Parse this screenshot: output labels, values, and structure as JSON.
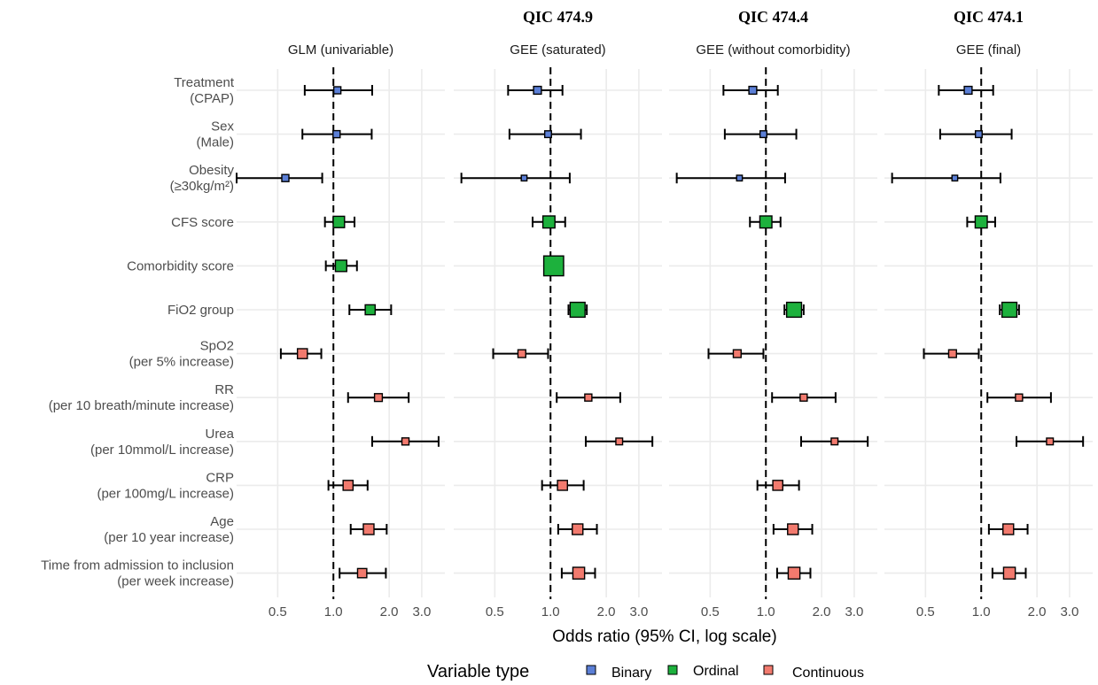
{
  "chart_data": {
    "type": "forest",
    "xlabel": "Odds ratio (95% CI, log scale)",
    "x_scale": "log",
    "xlim": [
      0.3,
      4.0
    ],
    "x_ticks": [
      "0.5",
      "1.0",
      "2.0",
      "3.0"
    ],
    "reference_line": 1.0,
    "grid": true,
    "colors": {
      "Binary": "#5b7fd6",
      "Ordinal": "#1db13d",
      "Continuous": "#f27a6e"
    },
    "legend": {
      "title": "Variable type",
      "position": "bottom",
      "items": [
        "Binary",
        "Ordinal",
        "Continuous"
      ]
    },
    "variables": [
      {
        "label": [
          "Treatment",
          "(CPAP)"
        ],
        "type": "Binary"
      },
      {
        "label": [
          "Sex",
          "(Male)"
        ],
        "type": "Binary"
      },
      {
        "label": [
          "Obesity",
          "(≥30kg/m²)"
        ],
        "type": "Binary"
      },
      {
        "label": [
          "CFS score"
        ],
        "type": "Ordinal"
      },
      {
        "label": [
          "Comorbidity score"
        ],
        "type": "Ordinal"
      },
      {
        "label": [
          "FiO2 group"
        ],
        "type": "Ordinal"
      },
      {
        "label": [
          "SpO2",
          "(per 5% increase)"
        ],
        "type": "Continuous"
      },
      {
        "label": [
          "RR",
          "(per 10 breath/minute increase)"
        ],
        "type": "Continuous"
      },
      {
        "label": [
          "Urea",
          "(per 10mmol/L increase)"
        ],
        "type": "Continuous"
      },
      {
        "label": [
          "CRP",
          "(per 100mg/L increase)"
        ],
        "type": "Continuous"
      },
      {
        "label": [
          "Age",
          "(per 10 year increase)"
        ],
        "type": "Continuous"
      },
      {
        "label": [
          "Time from admission to inclusion",
          "(per week increase)"
        ],
        "type": "Continuous"
      }
    ],
    "panels": [
      {
        "strip": "GLM (univariable)",
        "qic": "",
        "estimates": [
          {
            "or": 1.05,
            "lo": 0.7,
            "hi": 1.62,
            "size": 1.0
          },
          {
            "or": 1.04,
            "lo": 0.68,
            "hi": 1.61,
            "size": 1.0
          },
          {
            "or": 0.55,
            "lo": 0.3,
            "hi": 0.87,
            "size": 1.0
          },
          {
            "or": 1.07,
            "lo": 0.9,
            "hi": 1.3,
            "size": 1.6
          },
          {
            "or": 1.1,
            "lo": 0.91,
            "hi": 1.34,
            "size": 1.6
          },
          {
            "or": 1.58,
            "lo": 1.22,
            "hi": 2.05,
            "size": 1.4
          },
          {
            "or": 0.68,
            "lo": 0.52,
            "hi": 0.86,
            "size": 1.4
          },
          {
            "or": 1.75,
            "lo": 1.2,
            "hi": 2.55,
            "size": 1.1
          },
          {
            "or": 2.45,
            "lo": 1.62,
            "hi": 3.7,
            "size": 1.0
          },
          {
            "or": 1.2,
            "lo": 0.94,
            "hi": 1.53,
            "size": 1.4
          },
          {
            "or": 1.55,
            "lo": 1.24,
            "hi": 1.94,
            "size": 1.5
          },
          {
            "or": 1.43,
            "lo": 1.08,
            "hi": 1.92,
            "size": 1.3
          }
        ]
      },
      {
        "strip": "GEE (saturated)",
        "qic": "QIC 474.9",
        "estimates": [
          {
            "or": 0.85,
            "lo": 0.59,
            "hi": 1.16,
            "size": 1.1
          },
          {
            "or": 0.97,
            "lo": 0.6,
            "hi": 1.46,
            "size": 0.95
          },
          {
            "or": 0.72,
            "lo": 0.33,
            "hi": 1.27,
            "size": 0.8
          },
          {
            "or": 0.98,
            "lo": 0.8,
            "hi": 1.2,
            "size": 1.7
          },
          {
            "or": 1.04,
            "lo": 0.93,
            "hi": 1.16,
            "size": 2.8
          },
          {
            "or": 1.4,
            "lo": 1.25,
            "hi": 1.57,
            "size": 2.1
          },
          {
            "or": 0.7,
            "lo": 0.49,
            "hi": 0.97,
            "size": 1.1
          },
          {
            "or": 1.6,
            "lo": 1.08,
            "hi": 2.38,
            "size": 1.0
          },
          {
            "or": 2.35,
            "lo": 1.55,
            "hi": 3.55,
            "size": 0.95
          },
          {
            "or": 1.16,
            "lo": 0.9,
            "hi": 1.51,
            "size": 1.4
          },
          {
            "or": 1.4,
            "lo": 1.1,
            "hi": 1.78,
            "size": 1.5
          },
          {
            "or": 1.42,
            "lo": 1.15,
            "hi": 1.74,
            "size": 1.65
          }
        ]
      },
      {
        "strip": "GEE (without comorbidity)",
        "qic": "QIC 474.4",
        "estimates": [
          {
            "or": 0.85,
            "lo": 0.59,
            "hi": 1.16,
            "size": 1.1
          },
          {
            "or": 0.97,
            "lo": 0.6,
            "hi": 1.46,
            "size": 0.95
          },
          {
            "or": 0.72,
            "lo": 0.33,
            "hi": 1.27,
            "size": 0.8
          },
          {
            "or": 1.0,
            "lo": 0.82,
            "hi": 1.2,
            "size": 1.7
          },
          {
            "or": 1.42,
            "lo": 1.26,
            "hi": 1.6,
            "size": 2.1
          },
          {
            "or": 0.7,
            "lo": 0.49,
            "hi": 0.97,
            "size": 1.1
          },
          {
            "or": 1.6,
            "lo": 1.08,
            "hi": 2.38,
            "size": 1.0
          },
          {
            "or": 2.35,
            "lo": 1.55,
            "hi": 3.55,
            "size": 0.95
          },
          {
            "or": 1.16,
            "lo": 0.9,
            "hi": 1.51,
            "size": 1.4
          },
          {
            "or": 1.4,
            "lo": 1.1,
            "hi": 1.78,
            "size": 1.5
          },
          {
            "or": 1.42,
            "lo": 1.15,
            "hi": 1.74,
            "size": 1.65
          }
        ],
        "rows": [
          0,
          1,
          2,
          3,
          5,
          6,
          7,
          8,
          9,
          10,
          11
        ]
      },
      {
        "strip": "GEE (final)",
        "qic": "QIC 474.1",
        "estimates": [
          {
            "or": 0.85,
            "lo": 0.59,
            "hi": 1.16,
            "size": 1.1
          },
          {
            "or": 0.97,
            "lo": 0.6,
            "hi": 1.46,
            "size": 0.95
          },
          {
            "or": 0.72,
            "lo": 0.33,
            "hi": 1.27,
            "size": 0.8
          },
          {
            "or": 1.0,
            "lo": 0.84,
            "hi": 1.19,
            "size": 1.7
          },
          {
            "or": 1.42,
            "lo": 1.26,
            "hi": 1.6,
            "size": 2.1
          },
          {
            "or": 0.7,
            "lo": 0.49,
            "hi": 0.97,
            "size": 1.1
          },
          {
            "or": 1.6,
            "lo": 1.08,
            "hi": 2.38,
            "size": 1.0
          },
          {
            "or": 2.35,
            "lo": 1.55,
            "hi": 3.55,
            "size": 0.95
          },
          {
            "or": 1.4,
            "lo": 1.1,
            "hi": 1.78,
            "size": 1.5
          },
          {
            "or": 1.42,
            "lo": 1.15,
            "hi": 1.74,
            "size": 1.65
          }
        ],
        "rows": [
          0,
          1,
          2,
          3,
          5,
          6,
          7,
          8,
          10,
          11
        ]
      }
    ]
  }
}
